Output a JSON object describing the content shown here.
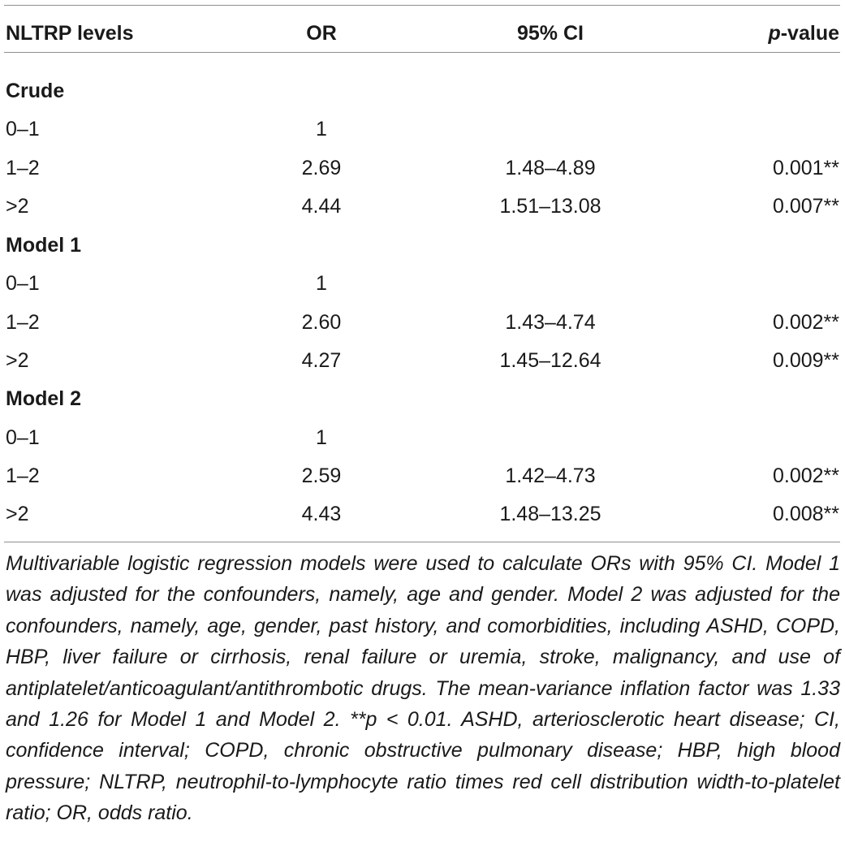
{
  "table": {
    "headers": {
      "level": "NLTRP levels",
      "or": "OR",
      "ci": "95% CI",
      "p_italic": "p",
      "p_rest": "-value"
    },
    "sections": [
      {
        "title": "Crude",
        "rows": [
          {
            "level": "0–1",
            "or": "1",
            "ci": "",
            "p": ""
          },
          {
            "level": "1–2",
            "or": "2.69",
            "ci": "1.48–4.89",
            "p": "0.001**"
          },
          {
            "level": ">2",
            "or": "4.44",
            "ci": "1.51–13.08",
            "p": "0.007**"
          }
        ]
      },
      {
        "title": "Model 1",
        "rows": [
          {
            "level": "0–1",
            "or": "1",
            "ci": "",
            "p": ""
          },
          {
            "level": "1–2",
            "or": "2.60",
            "ci": "1.43–4.74",
            "p": "0.002**"
          },
          {
            "level": ">2",
            "or": "4.27",
            "ci": "1.45–12.64",
            "p": "0.009**"
          }
        ]
      },
      {
        "title": "Model 2",
        "rows": [
          {
            "level": "0–1",
            "or": "1",
            "ci": "",
            "p": ""
          },
          {
            "level": "1–2",
            "or": "2.59",
            "ci": "1.42–4.73",
            "p": "0.002**"
          },
          {
            "level": ">2",
            "or": "4.43",
            "ci": "1.48–13.25",
            "p": "0.008**"
          }
        ]
      }
    ]
  },
  "footnote": "Multivariable logistic regression models were used to calculate ORs with 95% CI. Model 1 was adjusted for the confounders, namely, age and gender. Model 2 was adjusted for the confounders, namely, age, gender, past history, and comorbidities, including ASHD, COPD, HBP, liver failure or cirrhosis, renal failure or uremia, stroke, malignancy, and use of antiplatelet/anticoagulant/antithrombotic drugs. The mean-variance inflation factor was 1.33 and 1.26 for Model 1 and Model 2. **p < 0.01. ASHD, arteriosclerotic heart disease; CI, confidence interval; COPD, chronic obstructive pulmonary disease; HBP, high blood pressure; NLTRP, neutrophil-to-lymphocyte ratio times red cell distribution width-to-platelet ratio; OR, odds ratio."
}
